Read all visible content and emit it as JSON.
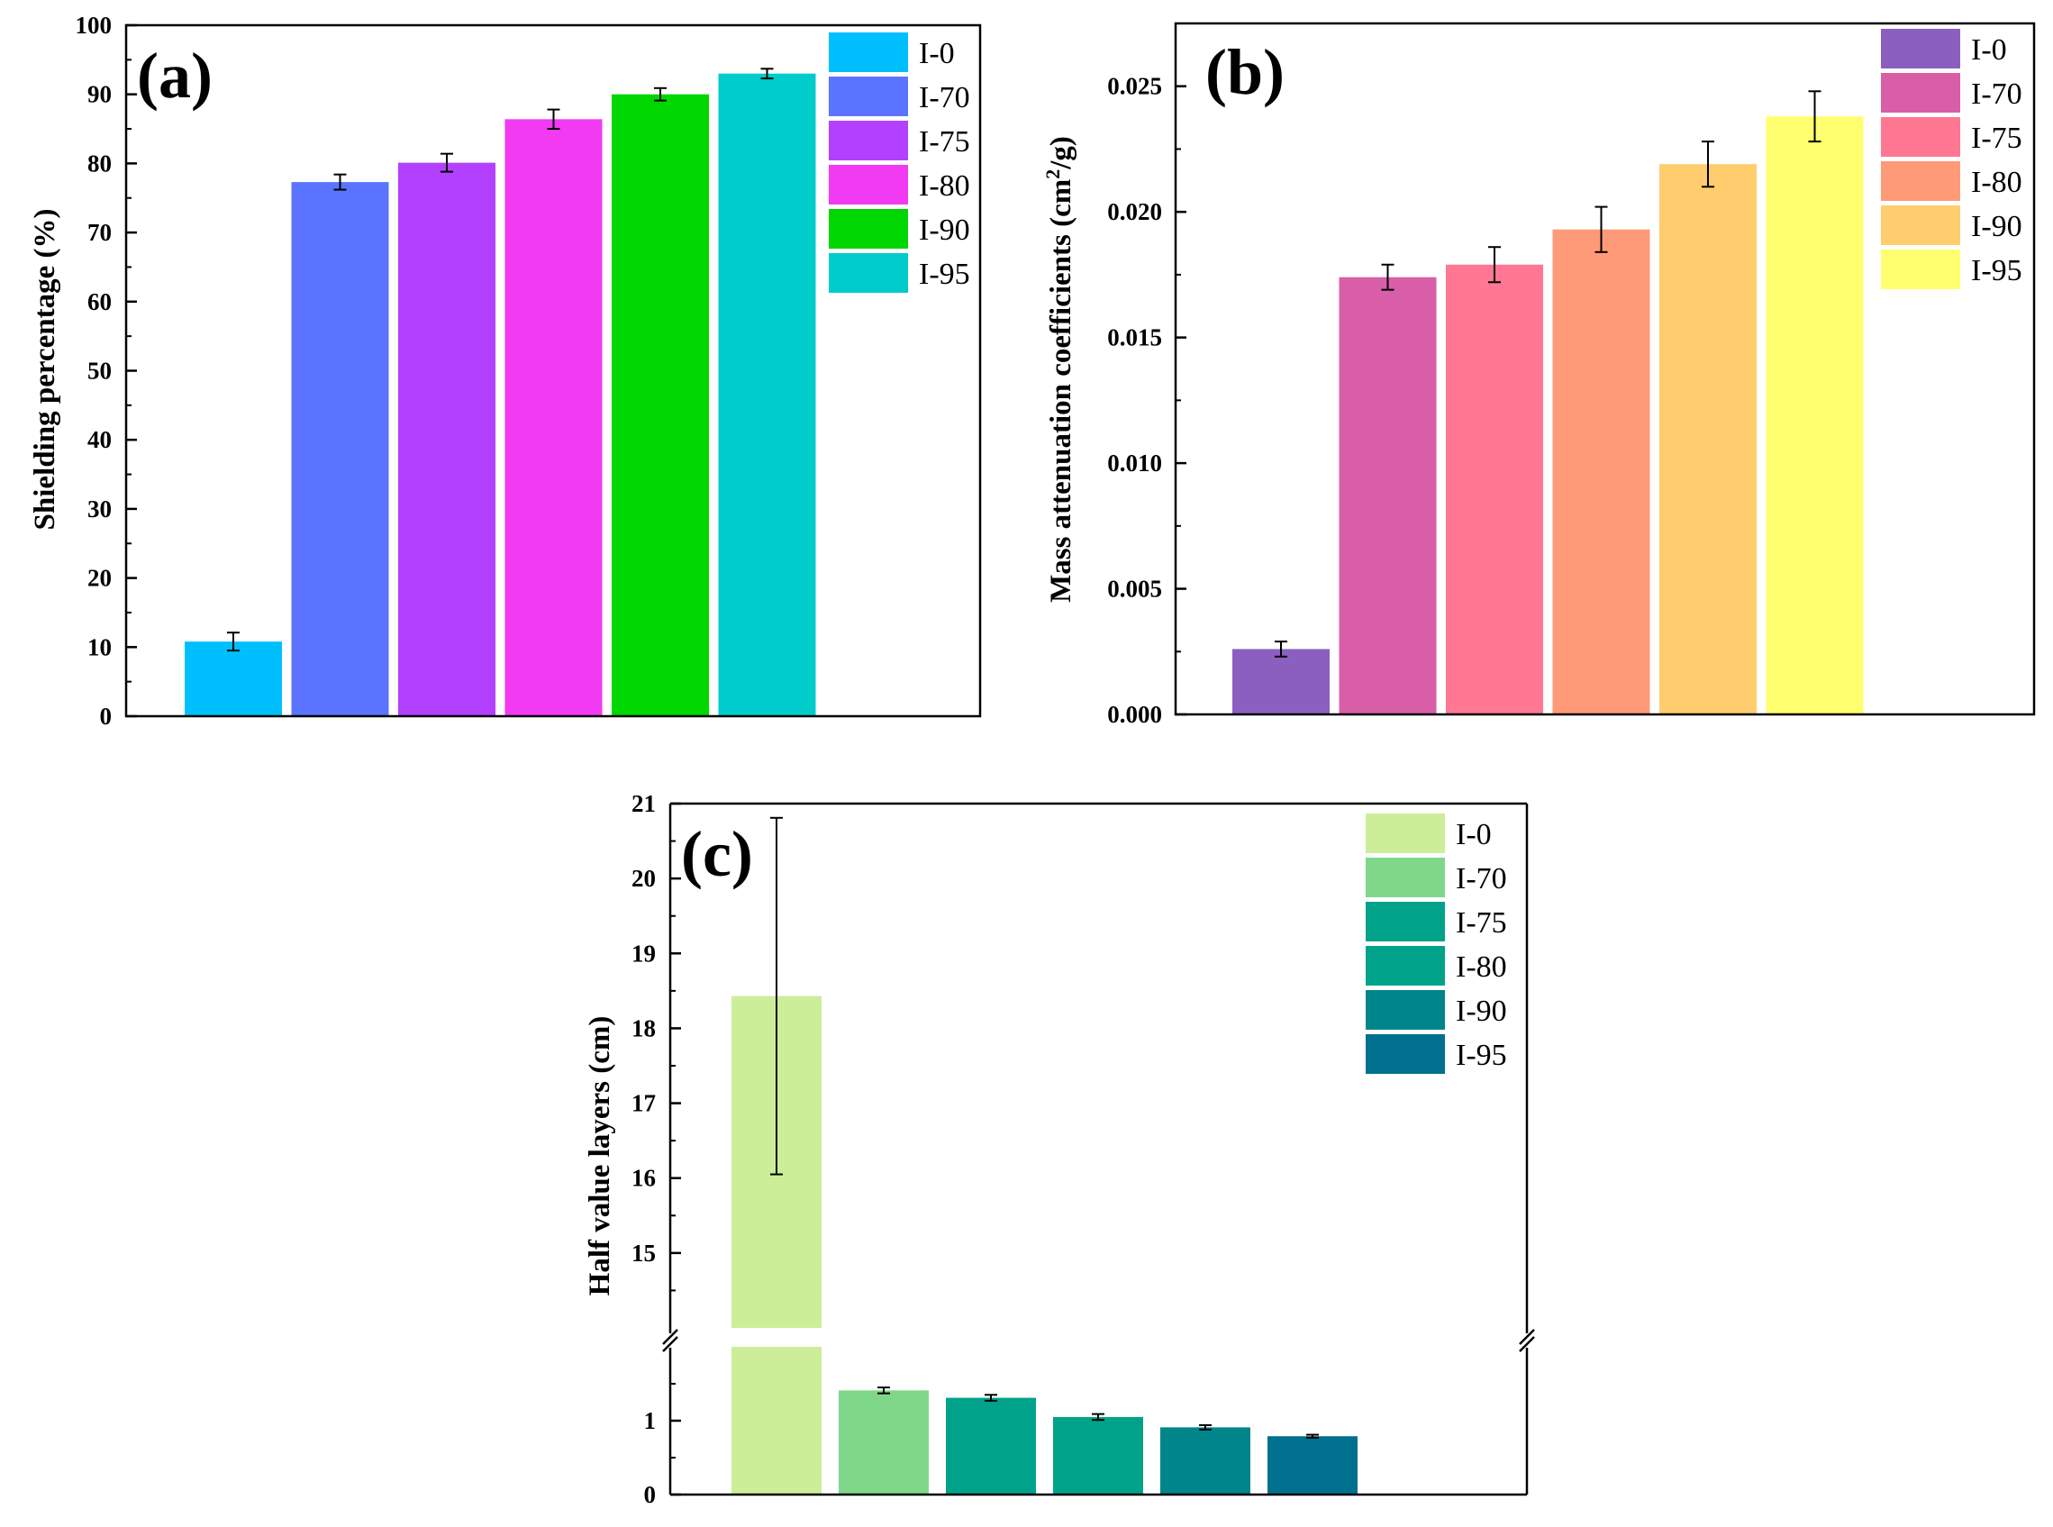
{
  "chart_data": [
    {
      "type": "bar",
      "panel_label": "(a)",
      "categories": [
        "I-0",
        "I-70",
        "I-75",
        "I-80",
        "I-90",
        "I-95"
      ],
      "values": [
        10.8,
        77.3,
        80.1,
        86.4,
        90.0,
        93.0
      ],
      "errors": [
        1.3,
        1.1,
        1.3,
        1.4,
        0.9,
        0.7
      ],
      "colors": [
        "#00bfff",
        "#5b74ff",
        "#b340ff",
        "#f23af2",
        "#00d600",
        "#00cccc"
      ],
      "ylabel": "Shielding percentage (%)",
      "ylim": [
        0,
        100
      ],
      "yticks": [
        0,
        10,
        20,
        30,
        40,
        50,
        60,
        70,
        80,
        90,
        100
      ],
      "ytick_labels": [
        "0",
        "10",
        "20",
        "30",
        "40",
        "50",
        "60",
        "70",
        "80",
        "90",
        "100"
      ],
      "legend": [
        "I-0",
        "I-70",
        "I-75",
        "I-80",
        "I-90",
        "I-95"
      ],
      "legend_position": "top-right"
    },
    {
      "type": "bar",
      "panel_label": "(b)",
      "categories": [
        "I-0",
        "I-70",
        "I-75",
        "I-80",
        "I-90",
        "I-95"
      ],
      "values": [
        0.0026,
        0.0174,
        0.0179,
        0.0193,
        0.0219,
        0.0238
      ],
      "errors": [
        0.0003,
        0.0005,
        0.0007,
        0.0009,
        0.0009,
        0.001
      ],
      "colors": [
        "#8a5fc0",
        "#d95ea8",
        "#ff7792",
        "#ff9a78",
        "#ffcc6e",
        "#ffff70"
      ],
      "ylabel_main": "Mass attenuation coefficients (cm",
      "ylabel_sup": "2",
      "ylabel_end": "/g)",
      "ylim": [
        0,
        0.0275
      ],
      "yticks": [
        0,
        0.005,
        0.01,
        0.015,
        0.02,
        0.025
      ],
      "ytick_labels": [
        "0.000",
        "0.005",
        "0.010",
        "0.015",
        "0.020",
        "0.025"
      ],
      "legend": [
        "I-0",
        "I-70",
        "I-75",
        "I-80",
        "I-90",
        "I-95"
      ],
      "legend_position": "top-right"
    },
    {
      "type": "bar",
      "panel_label": "(c)",
      "categories": [
        "I-0",
        "I-70",
        "I-75",
        "I-80",
        "I-90",
        "I-95"
      ],
      "values": [
        18.43,
        1.41,
        1.31,
        1.05,
        0.91,
        0.79
      ],
      "errors": [
        2.38,
        0.04,
        0.04,
        0.04,
        0.03,
        0.02
      ],
      "colors": [
        "#ccee99",
        "#7fd88a",
        "#00a38a",
        "#00a38a",
        "#00868a",
        "#00708f"
      ],
      "ylabel": "Half value layers (cm)",
      "broken_axis": true,
      "lower_range": [
        0,
        2
      ],
      "upper_range": [
        14,
        21
      ],
      "lower_ticks": [
        0,
        1
      ],
      "lower_tick_labels": [
        "0",
        "1"
      ],
      "upper_ticks": [
        15,
        16,
        17,
        18,
        19,
        20,
        21
      ],
      "upper_tick_labels": [
        "15",
        "16",
        "17",
        "18",
        "19",
        "20",
        "21"
      ],
      "legend": [
        "I-0",
        "I-70",
        "I-75",
        "I-80",
        "I-90",
        "I-95"
      ],
      "legend_position": "top-right"
    }
  ]
}
